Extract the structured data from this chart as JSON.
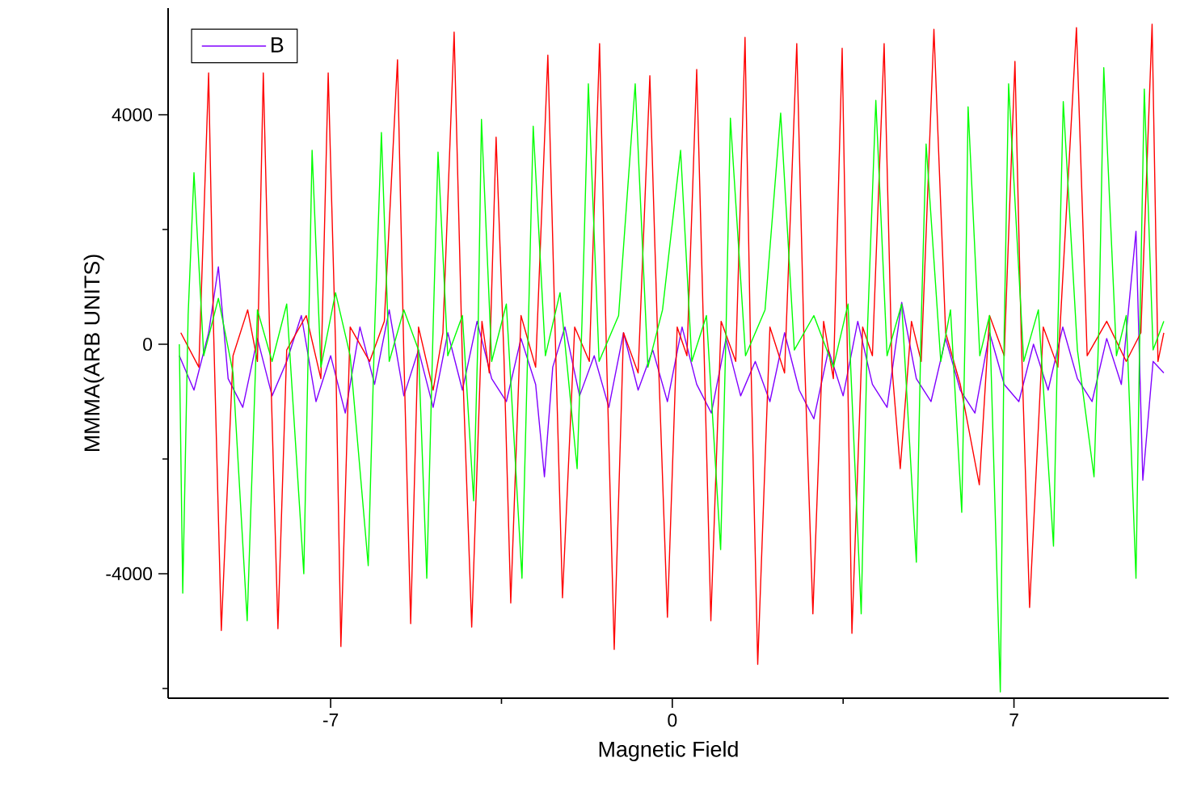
{
  "chart_data": {
    "type": "line",
    "xlabel": "Magnetic Field",
    "ylabel": "MMMA(ARB UNITS)",
    "xlim": [
      -10.33,
      10.17
    ],
    "ylim": [
      -6170,
      5860
    ],
    "xticks": [
      -7,
      0,
      7,
      {
        "value": -3.5,
        "label": null
      },
      {
        "value": 3.5,
        "label": null
      }
    ],
    "yticks": [
      -4000,
      0,
      4000,
      {
        "value": -6000,
        "label": null
      },
      {
        "value": -2000,
        "label": null
      },
      {
        "value": 2000,
        "label": null
      }
    ],
    "legend": "top left",
    "line_style": "solid",
    "marker": "none",
    "series": [
      {
        "name": "B",
        "color": "#8000ff",
        "x": [
          -10.1,
          -9.8,
          -9.5,
          -9.3,
          -9.1,
          -8.8,
          -8.5,
          -8.2,
          -7.9,
          -7.6,
          -7.3,
          -7.0,
          -6.7,
          -6.4,
          -6.1,
          -5.8,
          -5.5,
          -5.2,
          -4.9,
          -4.6,
          -4.3,
          -4.0,
          -3.7,
          -3.4,
          -3.1,
          -2.8,
          -2.62,
          -2.45,
          -2.2,
          -1.9,
          -1.6,
          -1.3,
          -1.0,
          -0.7,
          -0.4,
          -0.1,
          0.2,
          0.5,
          0.8,
          1.1,
          1.4,
          1.7,
          2.0,
          2.3,
          2.6,
          2.9,
          3.2,
          3.5,
          3.8,
          4.1,
          4.4,
          4.7,
          5.0,
          5.3,
          5.6,
          5.9,
          6.2,
          6.5,
          6.8,
          7.1,
          7.4,
          7.7,
          8.0,
          8.3,
          8.6,
          8.9,
          9.2,
          9.5,
          9.64,
          9.85,
          10.07
        ],
        "values": [
          -200,
          -800,
          200,
          1350,
          -600,
          -1100,
          100,
          -900,
          -300,
          500,
          -1000,
          -200,
          -1200,
          300,
          -700,
          600,
          -900,
          -100,
          -1100,
          200,
          -800,
          400,
          -600,
          -1000,
          100,
          -700,
          -2310,
          -400,
          300,
          -900,
          -200,
          -1100,
          200,
          -800,
          -100,
          -1000,
          300,
          -700,
          -1200,
          100,
          -900,
          -300,
          -1000,
          200,
          -800,
          -1300,
          -100,
          -900,
          400,
          -700,
          -1100,
          730,
          -600,
          -1000,
          100,
          -800,
          -1200,
          200,
          -700,
          -1000,
          0,
          -800,
          300,
          -600,
          -1000,
          100,
          -700,
          1970,
          -2370,
          -300,
          -500
        ]
      },
      {
        "color": "#ff0000",
        "x": [
          -10.07,
          -9.7,
          -9.5,
          -9.4,
          -9.24,
          -9.0,
          -8.7,
          -8.5,
          -8.38,
          -8.25,
          -8.08,
          -7.9,
          -7.5,
          -7.2,
          -7.05,
          -6.9,
          -6.79,
          -6.6,
          -6.2,
          -5.9,
          -5.63,
          -5.5,
          -5.36,
          -5.2,
          -4.9,
          -4.7,
          -4.47,
          -4.3,
          -4.11,
          -3.9,
          -3.75,
          -3.61,
          -3.45,
          -3.31,
          -3.1,
          -2.8,
          -2.55,
          -2.4,
          -2.25,
          -2.0,
          -1.7,
          -1.49,
          -1.35,
          -1.19,
          -1.0,
          -0.7,
          -0.46,
          -0.3,
          -0.1,
          0.1,
          0.3,
          0.5,
          0.65,
          0.79,
          1.0,
          1.3,
          1.49,
          1.6,
          1.75,
          2.0,
          2.3,
          2.55,
          2.7,
          2.88,
          3.1,
          3.3,
          3.48,
          3.58,
          3.68,
          3.9,
          4.1,
          4.34,
          4.5,
          4.67,
          4.9,
          5.1,
          5.36,
          5.6,
          5.9,
          6.29,
          6.5,
          6.8,
          7.02,
          7.15,
          7.32,
          7.6,
          7.9,
          8.28,
          8.5,
          8.9,
          9.3,
          9.6,
          9.83,
          9.95,
          10.07
        ],
        "values": [
          200,
          -400,
          4730,
          300,
          -4990,
          -200,
          600,
          -300,
          4730,
          200,
          -4960,
          -100,
          500,
          -600,
          4730,
          0,
          -5270,
          300,
          -300,
          400,
          4960,
          -200,
          -4870,
          300,
          -800,
          200,
          5440,
          -300,
          -4930,
          400,
          -500,
          3610,
          -200,
          -4510,
          500,
          -400,
          5040,
          200,
          -4420,
          300,
          -300,
          5240,
          -100,
          -5320,
          200,
          -500,
          4680,
          100,
          -4760,
          300,
          -200,
          4790,
          -100,
          -4820,
          400,
          -300,
          5350,
          100,
          -5580,
          300,
          -500,
          5240,
          0,
          -4700,
          400,
          -600,
          5160,
          200,
          -5040,
          300,
          -200,
          5240,
          -400,
          -2170,
          400,
          -300,
          5490,
          200,
          -700,
          -2450,
          500,
          -200,
          4930,
          100,
          -4590,
          300,
          -400,
          5520,
          -200,
          400,
          -300,
          200,
          5580,
          -300,
          200
        ]
      },
      {
        "color": "#00ff00",
        "x": [
          -10.1,
          -10.03,
          -9.92,
          -9.8,
          -9.6,
          -9.3,
          -9.0,
          -8.71,
          -8.5,
          -8.2,
          -7.9,
          -7.55,
          -7.45,
          -7.38,
          -7.2,
          -6.9,
          -6.6,
          -6.23,
          -6.1,
          -5.96,
          -5.8,
          -5.5,
          -5.2,
          -5.03,
          -4.9,
          -4.8,
          -4.6,
          -4.3,
          -4.07,
          -3.98,
          -3.91,
          -3.7,
          -3.4,
          -3.08,
          -2.95,
          -2.85,
          -2.6,
          -2.3,
          -1.95,
          -1.85,
          -1.72,
          -1.5,
          -1.1,
          -0.76,
          -0.5,
          -0.2,
          0.17,
          0.4,
          0.7,
          0.99,
          1.1,
          1.19,
          1.5,
          1.9,
          2.22,
          2.5,
          2.9,
          3.3,
          3.6,
          3.87,
          4.0,
          4.17,
          4.4,
          4.7,
          5.0,
          5.1,
          5.2,
          5.5,
          5.7,
          5.93,
          6.0,
          6.06,
          6.3,
          6.5,
          6.72,
          6.8,
          6.89,
          7.2,
          7.5,
          7.81,
          7.9,
          8.01,
          8.3,
          8.64,
          8.74,
          8.84,
          9.1,
          9.3,
          9.5,
          9.58,
          9.67,
          9.85,
          10.07
        ],
        "values": [
          0,
          -4340,
          500,
          2990,
          -200,
          800,
          -500,
          -4820,
          600,
          -300,
          700,
          -4000,
          300,
          3380,
          -400,
          900,
          -200,
          -3860,
          200,
          3690,
          -300,
          600,
          -100,
          -4080,
          300,
          3350,
          -200,
          500,
          -2730,
          200,
          3920,
          -300,
          700,
          -4080,
          300,
          3800,
          -200,
          900,
          -2170,
          400,
          4540,
          -300,
          500,
          4540,
          -400,
          600,
          3380,
          -300,
          500,
          -3580,
          200,
          3940,
          -200,
          600,
          4030,
          -100,
          500,
          -400,
          700,
          -4700,
          300,
          4250,
          -200,
          700,
          -3800,
          400,
          3490,
          -300,
          600,
          -2930,
          300,
          4140,
          -200,
          500,
          -6060,
          200,
          4540,
          -300,
          600,
          -3520,
          300,
          4230,
          -100,
          -2310,
          300,
          4820,
          -200,
          500,
          -4080,
          300,
          4450,
          -100,
          400
        ]
      }
    ]
  }
}
